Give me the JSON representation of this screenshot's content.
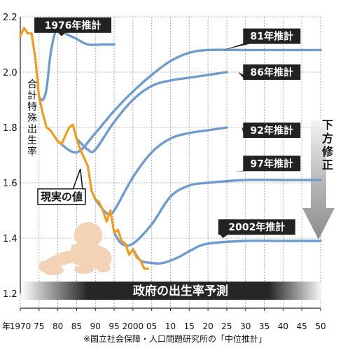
{
  "chart_data": {
    "type": "line",
    "title": "政府の出生率予測",
    "ylabel": "合計特殊出生率",
    "xlabel": "年",
    "source": "※国立社会保障・人口問題研究所の「中位推計」",
    "side_label": "下方修正",
    "xlim": [
      1970,
      2050
    ],
    "ylim": [
      1.2,
      2.2
    ],
    "x_ticks": [
      "1970",
      "75",
      "80",
      "85",
      "90",
      "95",
      "2000",
      "05",
      "10",
      "15",
      "20",
      "25",
      "30",
      "35",
      "40",
      "45",
      "50"
    ],
    "y_ticks": [
      "1.2",
      "1.4",
      "1.6",
      "1.8",
      "2.0",
      "2.2"
    ],
    "grid": true,
    "series": [
      {
        "name": "現実の値",
        "color": "#f29b1d",
        "points": [
          [
            1970,
            2.13
          ],
          [
            1971,
            2.16
          ],
          [
            1972,
            2.14
          ],
          [
            1973,
            2.14
          ],
          [
            1974,
            2.05
          ],
          [
            1975,
            1.91
          ],
          [
            1976,
            1.85
          ],
          [
            1977,
            1.8
          ],
          [
            1978,
            1.79
          ],
          [
            1979,
            1.77
          ],
          [
            1980,
            1.75
          ],
          [
            1981,
            1.74
          ],
          [
            1982,
            1.77
          ],
          [
            1983,
            1.8
          ],
          [
            1984,
            1.81
          ],
          [
            1985,
            1.76
          ],
          [
            1986,
            1.72
          ],
          [
            1987,
            1.69
          ],
          [
            1988,
            1.66
          ],
          [
            1989,
            1.57
          ],
          [
            1990,
            1.54
          ],
          [
            1991,
            1.53
          ],
          [
            1992,
            1.5
          ],
          [
            1993,
            1.46
          ],
          [
            1994,
            1.5
          ],
          [
            1995,
            1.42
          ],
          [
            1996,
            1.43
          ],
          [
            1997,
            1.39
          ],
          [
            1998,
            1.38
          ],
          [
            1999,
            1.34
          ],
          [
            2000,
            1.36
          ],
          [
            2001,
            1.33
          ],
          [
            2002,
            1.32
          ],
          [
            2003,
            1.29
          ],
          [
            2004,
            1.29
          ]
        ]
      },
      {
        "name": "1976年推計",
        "color": "#6f9bcf",
        "points": [
          [
            1975,
            1.91
          ],
          [
            1976,
            1.9
          ],
          [
            1977,
            1.94
          ],
          [
            1978,
            2.06
          ],
          [
            1979,
            2.13
          ],
          [
            1980,
            2.16
          ],
          [
            1982,
            2.14
          ],
          [
            1985,
            2.12
          ],
          [
            1988,
            2.1
          ],
          [
            1992,
            2.1
          ],
          [
            1995,
            2.1
          ]
        ]
      },
      {
        "name": "81年推計",
        "color": "#6f9bcf",
        "points": [
          [
            1980,
            1.75
          ],
          [
            1985,
            1.71
          ],
          [
            1990,
            1.78
          ],
          [
            1995,
            1.86
          ],
          [
            2000,
            1.93
          ],
          [
            2005,
            1.99
          ],
          [
            2010,
            2.04
          ],
          [
            2015,
            2.07
          ],
          [
            2020,
            2.08
          ],
          [
            2030,
            2.08
          ],
          [
            2040,
            2.08
          ],
          [
            2050,
            2.08
          ]
        ]
      },
      {
        "name": "86年推計",
        "color": "#6f9bcf",
        "points": [
          [
            1985,
            1.76
          ],
          [
            1988,
            1.72
          ],
          [
            1990,
            1.72
          ],
          [
            1995,
            1.82
          ],
          [
            2000,
            1.9
          ],
          [
            2005,
            1.95
          ],
          [
            2010,
            1.97
          ],
          [
            2015,
            1.98
          ],
          [
            2020,
            1.99
          ],
          [
            2025,
            2.0
          ]
        ]
      },
      {
        "name": "92年推計",
        "color": "#6f9bcf",
        "points": [
          [
            1990,
            1.54
          ],
          [
            1993,
            1.49
          ],
          [
            1995,
            1.5
          ],
          [
            2000,
            1.62
          ],
          [
            2005,
            1.71
          ],
          [
            2010,
            1.76
          ],
          [
            2015,
            1.78
          ],
          [
            2020,
            1.79
          ],
          [
            2025,
            1.8
          ]
        ]
      },
      {
        "name": "97年推計",
        "color": "#6f9bcf",
        "points": [
          [
            1995,
            1.42
          ],
          [
            1997,
            1.38
          ],
          [
            2000,
            1.38
          ],
          [
            2005,
            1.45
          ],
          [
            2010,
            1.55
          ],
          [
            2015,
            1.59
          ],
          [
            2020,
            1.6
          ],
          [
            2030,
            1.61
          ],
          [
            2040,
            1.61
          ],
          [
            2050,
            1.61
          ]
        ]
      },
      {
        "name": "2002年推計",
        "color": "#6f9bcf",
        "points": [
          [
            2000,
            1.36
          ],
          [
            2002,
            1.32
          ],
          [
            2005,
            1.31
          ],
          [
            2008,
            1.31
          ],
          [
            2012,
            1.33
          ],
          [
            2016,
            1.36
          ],
          [
            2020,
            1.38
          ],
          [
            2030,
            1.39
          ],
          [
            2040,
            1.39
          ],
          [
            2050,
            1.39
          ]
        ]
      }
    ],
    "callouts": [
      {
        "text": "現実の値",
        "x": 1981,
        "y": 1.55,
        "at": [
          1986,
          1.65
        ],
        "style": "outline"
      },
      {
        "text": "1976年推計",
        "x": 1984,
        "y": 2.17,
        "at": [
          1981,
          2.13
        ],
        "style": "dark"
      },
      {
        "text": "81年推計",
        "x": 2037,
        "y": 2.13,
        "at": [
          2024,
          2.08
        ],
        "style": "dark"
      },
      {
        "text": "86年推計",
        "x": 2037,
        "y": 2.0,
        "at": [
          2028,
          2.0
        ],
        "style": "dark"
      },
      {
        "text": "92年推計",
        "x": 2037,
        "y": 1.79,
        "at": [
          2029,
          1.8
        ],
        "style": "dark"
      },
      {
        "text": "97年推計",
        "x": 2037,
        "y": 1.67,
        "at": [
          2027,
          1.64
        ],
        "style": "dark"
      },
      {
        "text": "2002年推計",
        "x": 2033,
        "y": 1.44,
        "at": [
          2024,
          1.4
        ],
        "style": "dark"
      }
    ]
  }
}
